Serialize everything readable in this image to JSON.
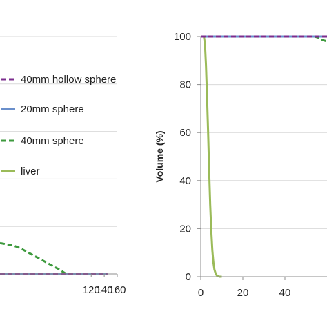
{
  "chart_data": [
    {
      "type": "line",
      "title": "",
      "xlabel": "",
      "ylabel": "",
      "xlim": [
        -20,
        160
      ],
      "ylim": [
        0,
        100
      ],
      "x_ticks": [
        {
          "value": 120,
          "label": "120"
        },
        {
          "value": 140,
          "label": "140"
        },
        {
          "value": 160,
          "label": "160"
        }
      ],
      "grid": true,
      "legend_position": "right",
      "series": [
        {
          "name": "40mm hollow sphere",
          "color": "#7B2D8E",
          "dash": "dashed",
          "x": [
            -20,
            145
          ],
          "y": [
            0,
            0
          ]
        },
        {
          "name": "20mm sphere",
          "color": "#6A8FCB",
          "dash": "solid",
          "x": [
            -20,
            145
          ],
          "y": [
            0,
            0
          ]
        },
        {
          "name": "40mm sphere",
          "color": "#3E9A3E",
          "dash": "dashed",
          "x": [
            -20,
            0,
            10,
            20,
            30,
            40,
            50,
            60,
            70,
            80,
            90,
            100,
            110,
            120,
            145
          ],
          "y": [
            13,
            12,
            11,
            9.5,
            8,
            6.5,
            5,
            3.5,
            2,
            0.3,
            0,
            0,
            0,
            0,
            0
          ]
        },
        {
          "name": "liver",
          "color": "#9BBB59",
          "dash": "solid",
          "x": [],
          "y": []
        }
      ]
    },
    {
      "type": "line",
      "title": "",
      "xlabel": "",
      "ylabel": "Volume (%)",
      "xlim": [
        0,
        60
      ],
      "ylim": [
        0,
        100
      ],
      "x_ticks": [
        {
          "value": 0,
          "label": "0"
        },
        {
          "value": 20,
          "label": "20"
        },
        {
          "value": 40,
          "label": "40"
        }
      ],
      "y_ticks": [
        {
          "value": 0,
          "label": "0"
        },
        {
          "value": 20,
          "label": "20"
        },
        {
          "value": 40,
          "label": "40"
        },
        {
          "value": 60,
          "label": "60"
        },
        {
          "value": 80,
          "label": "80"
        },
        {
          "value": 100,
          "label": "100"
        }
      ],
      "grid": true,
      "series": [
        {
          "name": "40mm hollow sphere",
          "color": "#7B2D8E",
          "dash": "dashed",
          "x": [
            0,
            60
          ],
          "y": [
            100,
            100
          ]
        },
        {
          "name": "20mm sphere",
          "color": "#6A8FCB",
          "dash": "solid",
          "x": [
            0,
            60
          ],
          "y": [
            100,
            100
          ]
        },
        {
          "name": "40mm sphere",
          "color": "#3E9A3E",
          "dash": "dashed",
          "x": [
            0,
            54,
            56,
            58,
            60
          ],
          "y": [
            100,
            100,
            99.5,
            98.5,
            98
          ]
        },
        {
          "name": "liver",
          "color": "#9BBB59",
          "dash": "solid",
          "x": [
            1.5,
            2,
            2.5,
            3,
            3.5,
            4,
            4.5,
            5,
            5.5,
            6,
            6.5,
            7,
            7.5,
            8,
            9,
            10
          ],
          "y": [
            100,
            97,
            88,
            75,
            60,
            44,
            30,
            19,
            11,
            6,
            3,
            1.5,
            0.7,
            0.3,
            0,
            0
          ]
        }
      ]
    }
  ]
}
